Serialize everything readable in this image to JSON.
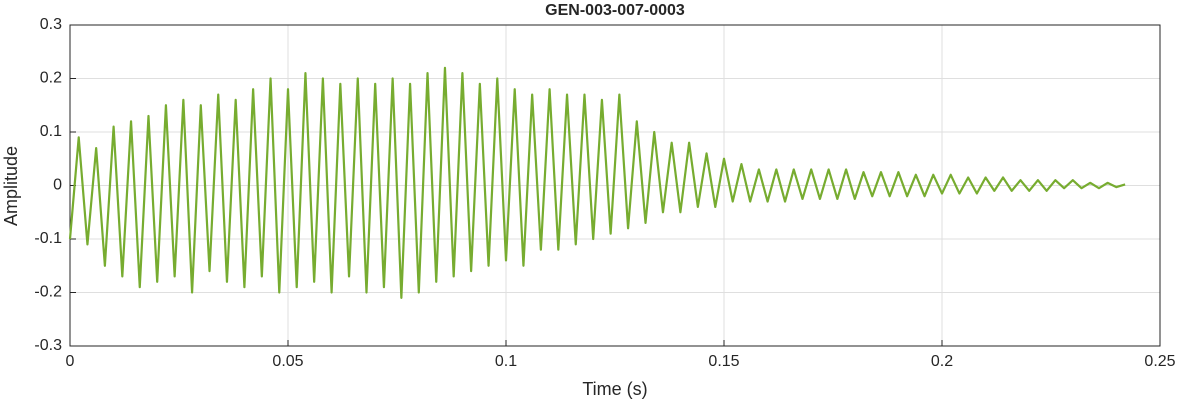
{
  "chart_data": {
    "type": "line",
    "title": "GEN-003-007-0003",
    "x_label": "Time (s)",
    "y_label": "Amplitude",
    "xlim": [
      0,
      0.25
    ],
    "ylim": [
      -0.3,
      0.3
    ],
    "xticks": [
      0,
      0.05,
      0.1,
      0.15,
      0.2,
      0.25
    ],
    "yticks": [
      -0.3,
      -0.2,
      -0.1,
      0,
      0.1,
      0.2,
      0.3
    ],
    "grid": true,
    "x": [
      0,
      0.002,
      0.004,
      0.006,
      0.008,
      0.01,
      0.012,
      0.014,
      0.016,
      0.018,
      0.02,
      0.022,
      0.024,
      0.026,
      0.028,
      0.03,
      0.032,
      0.034,
      0.036,
      0.038,
      0.04,
      0.042,
      0.044,
      0.046,
      0.048,
      0.05,
      0.052,
      0.054,
      0.056,
      0.058,
      0.06,
      0.062,
      0.064,
      0.066,
      0.068,
      0.07,
      0.072,
      0.074,
      0.076,
      0.078,
      0.08,
      0.082,
      0.084,
      0.086,
      0.088,
      0.09,
      0.092,
      0.094,
      0.096,
      0.098,
      0.1,
      0.102,
      0.104,
      0.106,
      0.108,
      0.11,
      0.112,
      0.114,
      0.116,
      0.118,
      0.12,
      0.122,
      0.124,
      0.126,
      0.128,
      0.13,
      0.132,
      0.134,
      0.136,
      0.138,
      0.14,
      0.142,
      0.144,
      0.146,
      0.148,
      0.15,
      0.152,
      0.154,
      0.156,
      0.158,
      0.16,
      0.162,
      0.164,
      0.166,
      0.168,
      0.17,
      0.172,
      0.174,
      0.176,
      0.178,
      0.18,
      0.182,
      0.184,
      0.186,
      0.188,
      0.19,
      0.192,
      0.194,
      0.196,
      0.198,
      0.2,
      0.202,
      0.204,
      0.206,
      0.208,
      0.21,
      0.212,
      0.214,
      0.216,
      0.218,
      0.22,
      0.222,
      0.224,
      0.226,
      0.228,
      0.23,
      0.232,
      0.234,
      0.236,
      0.238,
      0.24,
      0.242
    ],
    "series": [
      {
        "color": "#77ac30",
        "values": [
          -0.1,
          0.09,
          -0.11,
          0.07,
          -0.15,
          0.11,
          -0.17,
          0.12,
          -0.19,
          0.13,
          -0.18,
          0.15,
          -0.17,
          0.16,
          -0.2,
          0.15,
          -0.16,
          0.17,
          -0.18,
          0.16,
          -0.19,
          0.18,
          -0.17,
          0.2,
          -0.2,
          0.18,
          -0.19,
          0.21,
          -0.18,
          0.2,
          -0.2,
          0.19,
          -0.17,
          0.2,
          -0.2,
          0.19,
          -0.19,
          0.2,
          -0.21,
          0.19,
          -0.2,
          0.21,
          -0.18,
          0.22,
          -0.17,
          0.21,
          -0.16,
          0.19,
          -0.15,
          0.2,
          -0.14,
          0.18,
          -0.15,
          0.17,
          -0.12,
          0.18,
          -0.12,
          0.17,
          -0.11,
          0.17,
          -0.1,
          0.16,
          -0.09,
          0.17,
          -0.08,
          0.12,
          -0.07,
          0.1,
          -0.05,
          0.08,
          -0.05,
          0.08,
          -0.04,
          0.06,
          -0.04,
          0.05,
          -0.03,
          0.04,
          -0.03,
          0.03,
          -0.03,
          0.03,
          -0.03,
          0.03,
          -0.025,
          0.03,
          -0.025,
          0.03,
          -0.025,
          0.03,
          -0.025,
          0.025,
          -0.02,
          0.025,
          -0.02,
          0.025,
          -0.02,
          0.02,
          -0.02,
          0.02,
          -0.015,
          0.02,
          -0.015,
          0.015,
          -0.015,
          0.015,
          -0.01,
          0.015,
          -0.01,
          0.01,
          -0.01,
          0.01,
          -0.01,
          0.01,
          -0.005,
          0.01,
          -0.005,
          0.005,
          -0.005,
          0.005,
          -0.003,
          0.002
        ]
      }
    ]
  }
}
